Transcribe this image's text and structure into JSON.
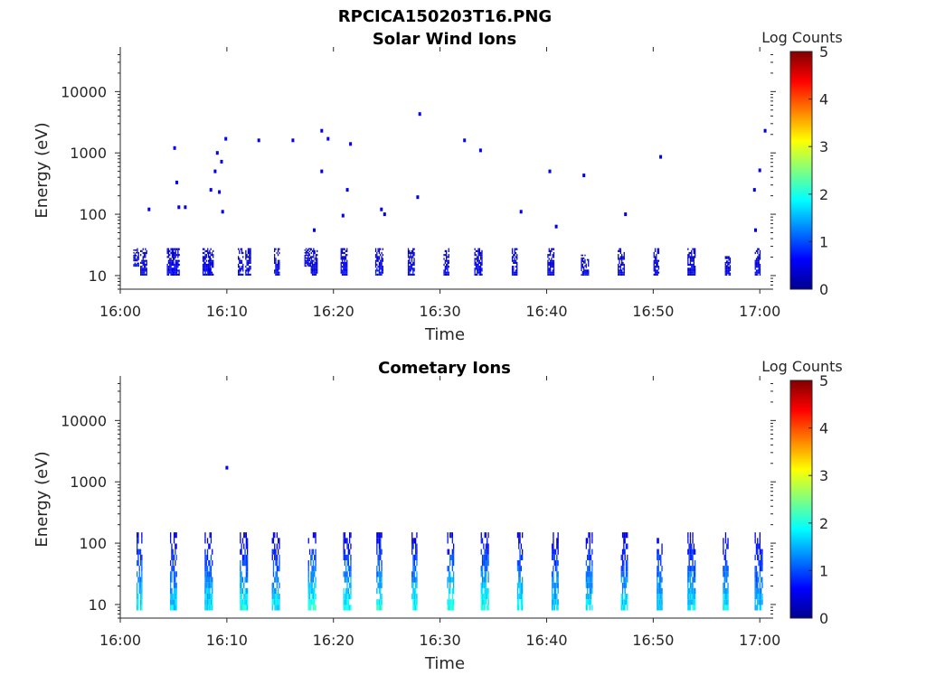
{
  "figure_title": "RPCICA150203T16.PNG",
  "chart_data": [
    {
      "type": "heatmap",
      "title": "Solar Wind Ions",
      "xlabel": "Time",
      "ylabel": "Energy (eV)",
      "y_scale": "log",
      "xlim": [
        "16:00",
        "17:01"
      ],
      "ylim": [
        6,
        45000
      ],
      "x_ticks": [
        "16:00",
        "16:10",
        "16:20",
        "16:30",
        "16:40",
        "16:50",
        "17:00"
      ],
      "y_ticks": [
        "10",
        "100",
        "1000",
        "10000"
      ],
      "colorbar": {
        "label": "Log Counts",
        "range": [
          0,
          5
        ],
        "ticks": [
          "0",
          "1",
          "2",
          "3",
          "4",
          "5"
        ],
        "colormap": "jet"
      },
      "background": "#ffffff",
      "bursts": [
        {
          "t": 1.5,
          "e_lo": 14,
          "e_hi": 28,
          "level": 0.6
        },
        {
          "t": 2.2,
          "e_lo": 10,
          "e_hi": 28,
          "level": 0.55
        },
        {
          "t": 4.7,
          "e_lo": 10,
          "e_hi": 28,
          "level": 0.6
        },
        {
          "t": 5.2,
          "e_lo": 10,
          "e_hi": 28,
          "level": 0.6
        },
        {
          "t": 8.1,
          "e_lo": 10,
          "e_hi": 28,
          "level": 0.6
        },
        {
          "t": 8.5,
          "e_lo": 10,
          "e_hi": 28,
          "level": 0.5
        },
        {
          "t": 11.3,
          "e_lo": 10,
          "e_hi": 28,
          "level": 0.6
        },
        {
          "t": 12.0,
          "e_lo": 10,
          "e_hi": 28,
          "level": 0.6
        },
        {
          "t": 14.7,
          "e_lo": 10,
          "e_hi": 28,
          "level": 0.6
        },
        {
          "t": 17.6,
          "e_lo": 14,
          "e_hi": 28,
          "level": 0.55
        },
        {
          "t": 18.2,
          "e_lo": 10,
          "e_hi": 28,
          "level": 0.6
        },
        {
          "t": 21.0,
          "e_lo": 10,
          "e_hi": 28,
          "level": 0.65
        },
        {
          "t": 24.3,
          "e_lo": 10,
          "e_hi": 28,
          "level": 0.7
        },
        {
          "t": 27.3,
          "e_lo": 10,
          "e_hi": 28,
          "level": 0.6
        },
        {
          "t": 30.6,
          "e_lo": 10,
          "e_hi": 28,
          "level": 0.55
        },
        {
          "t": 33.6,
          "e_lo": 10,
          "e_hi": 28,
          "level": 0.6
        },
        {
          "t": 37.0,
          "e_lo": 10,
          "e_hi": 28,
          "level": 0.55
        },
        {
          "t": 40.4,
          "e_lo": 10,
          "e_hi": 28,
          "level": 0.55
        },
        {
          "t": 43.6,
          "e_lo": 10,
          "e_hi": 22,
          "level": 0.55
        },
        {
          "t": 47.0,
          "e_lo": 10,
          "e_hi": 28,
          "level": 0.55
        },
        {
          "t": 50.3,
          "e_lo": 10,
          "e_hi": 28,
          "level": 0.55
        },
        {
          "t": 53.6,
          "e_lo": 10,
          "e_hi": 28,
          "level": 0.6
        },
        {
          "t": 57.0,
          "e_lo": 10,
          "e_hi": 22,
          "level": 0.5
        },
        {
          "t": 59.8,
          "e_lo": 10,
          "e_hi": 28,
          "level": 0.55
        }
      ],
      "points": [
        {
          "t": 2.7,
          "e": 120,
          "level": 0.6
        },
        {
          "t": 5.1,
          "e": 1200,
          "level": 0.6
        },
        {
          "t": 5.3,
          "e": 330,
          "level": 0.6
        },
        {
          "t": 5.5,
          "e": 130,
          "level": 0.6
        },
        {
          "t": 6.1,
          "e": 130,
          "level": 0.5
        },
        {
          "t": 8.5,
          "e": 250,
          "level": 0.5
        },
        {
          "t": 8.9,
          "e": 500,
          "level": 0.5
        },
        {
          "t": 9.1,
          "e": 1000,
          "level": 0.55
        },
        {
          "t": 9.3,
          "e": 230,
          "level": 0.5
        },
        {
          "t": 9.5,
          "e": 720,
          "level": 0.6
        },
        {
          "t": 9.6,
          "e": 110,
          "level": 0.6
        },
        {
          "t": 9.9,
          "e": 1700,
          "level": 0.65
        },
        {
          "t": 13.0,
          "e": 1600,
          "level": 0.6
        },
        {
          "t": 16.2,
          "e": 1600,
          "level": 0.6
        },
        {
          "t": 18.2,
          "e": 55,
          "level": 0.5
        },
        {
          "t": 18.9,
          "e": 500,
          "level": 0.5
        },
        {
          "t": 18.9,
          "e": 2300,
          "level": 0.5
        },
        {
          "t": 19.5,
          "e": 1700,
          "level": 0.6
        },
        {
          "t": 20.9,
          "e": 95,
          "level": 0.6
        },
        {
          "t": 21.3,
          "e": 250,
          "level": 0.5
        },
        {
          "t": 21.6,
          "e": 1400,
          "level": 0.6
        },
        {
          "t": 24.5,
          "e": 120,
          "level": 0.5
        },
        {
          "t": 24.8,
          "e": 100,
          "level": 0.5
        },
        {
          "t": 28.1,
          "e": 4300,
          "level": 0.6
        },
        {
          "t": 27.9,
          "e": 190,
          "level": 0.4
        },
        {
          "t": 32.3,
          "e": 1600,
          "level": 0.65
        },
        {
          "t": 33.8,
          "e": 1100,
          "level": 0.55
        },
        {
          "t": 37.6,
          "e": 110,
          "level": 0.6
        },
        {
          "t": 40.3,
          "e": 500,
          "level": 0.5
        },
        {
          "t": 40.9,
          "e": 63,
          "level": 0.5
        },
        {
          "t": 43.5,
          "e": 430,
          "level": 0.5
        },
        {
          "t": 47.4,
          "e": 100,
          "level": 0.5
        },
        {
          "t": 50.7,
          "e": 860,
          "level": 0.55
        },
        {
          "t": 59.5,
          "e": 250,
          "level": 0.5
        },
        {
          "t": 59.6,
          "e": 55,
          "level": 0.5
        },
        {
          "t": 60.0,
          "e": 520,
          "level": 0.5
        },
        {
          "t": 60.5,
          "e": 2300,
          "level": 0.5
        }
      ]
    },
    {
      "type": "heatmap",
      "title": "Cometary Ions",
      "xlabel": "Time",
      "ylabel": "Energy (eV)",
      "y_scale": "log",
      "xlim": [
        "16:00",
        "17:01"
      ],
      "ylim": [
        6,
        45000
      ],
      "x_ticks": [
        "16:00",
        "16:10",
        "16:20",
        "16:30",
        "16:40",
        "16:50",
        "17:00"
      ],
      "y_ticks": [
        "10",
        "100",
        "1000",
        "10000"
      ],
      "colorbar": {
        "label": "Log Counts",
        "range": [
          0,
          5
        ],
        "ticks": [
          "0",
          "1",
          "2",
          "3",
          "4",
          "5"
        ],
        "colormap": "jet"
      },
      "background": "#ffffff",
      "bursts": [
        {
          "t": 1.8,
          "e_lo": 8,
          "e_hi": 150,
          "level": 1.8
        },
        {
          "t": 5.0,
          "e_lo": 8,
          "e_hi": 150,
          "level": 1.7
        },
        {
          "t": 8.3,
          "e_lo": 8,
          "e_hi": 150,
          "level": 1.8
        },
        {
          "t": 11.6,
          "e_lo": 8,
          "e_hi": 150,
          "level": 1.9
        },
        {
          "t": 14.6,
          "e_lo": 8,
          "e_hi": 150,
          "level": 1.8
        },
        {
          "t": 18.0,
          "e_lo": 8,
          "e_hi": 150,
          "level": 2.0
        },
        {
          "t": 21.3,
          "e_lo": 8,
          "e_hi": 150,
          "level": 1.9
        },
        {
          "t": 24.3,
          "e_lo": 8,
          "e_hi": 150,
          "level": 2.0
        },
        {
          "t": 27.6,
          "e_lo": 8,
          "e_hi": 150,
          "level": 1.9
        },
        {
          "t": 31.0,
          "e_lo": 8,
          "e_hi": 150,
          "level": 2.0
        },
        {
          "t": 34.2,
          "e_lo": 8,
          "e_hi": 150,
          "level": 2.0
        },
        {
          "t": 37.5,
          "e_lo": 8,
          "e_hi": 150,
          "level": 1.9
        },
        {
          "t": 40.8,
          "e_lo": 8,
          "e_hi": 150,
          "level": 1.7
        },
        {
          "t": 44.0,
          "e_lo": 8,
          "e_hi": 150,
          "level": 1.8
        },
        {
          "t": 47.3,
          "e_lo": 8,
          "e_hi": 150,
          "level": 1.8
        },
        {
          "t": 50.6,
          "e_lo": 8,
          "e_hi": 150,
          "level": 1.7
        },
        {
          "t": 53.6,
          "e_lo": 8,
          "e_hi": 150,
          "level": 1.8
        },
        {
          "t": 56.8,
          "e_lo": 8,
          "e_hi": 150,
          "level": 1.8
        },
        {
          "t": 59.9,
          "e_lo": 8,
          "e_hi": 150,
          "level": 1.6
        }
      ],
      "points": [
        {
          "t": 10.0,
          "e": 1700,
          "level": 0.6
        }
      ]
    }
  ]
}
